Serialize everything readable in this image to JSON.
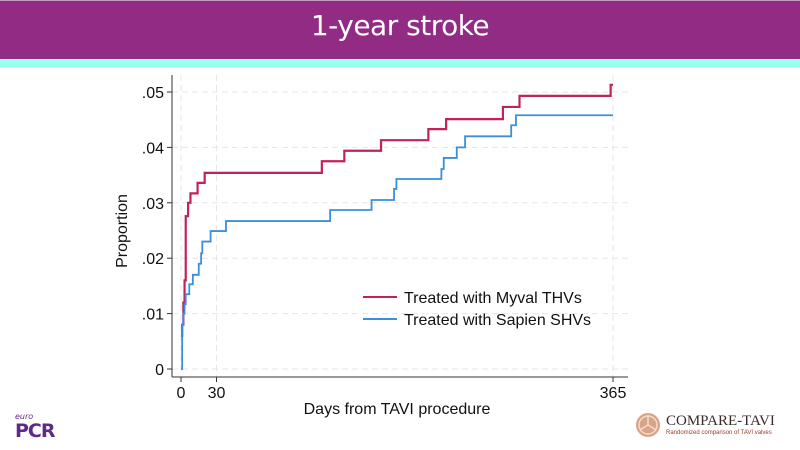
{
  "slide": {
    "title": "1-year stroke",
    "colors": {
      "header": "#922B83",
      "accent": "#99FFEE"
    }
  },
  "logos": {
    "euro_small": "euro",
    "euro_big": "PCR",
    "compare_name": "COMPARE-TAVI",
    "compare_sub": "Randomized comparison of TAVI valves"
  },
  "chart_data": {
    "type": "line",
    "subtype": "step",
    "title": "",
    "xlabel": "Days from TAVI procedure",
    "ylabel": "Proportion",
    "xlim": [
      0,
      365
    ],
    "ylim": [
      0,
      0.05
    ],
    "xticks": [
      0,
      30,
      365
    ],
    "xtick_labels": [
      "0",
      "30",
      "365"
    ],
    "yticks": [
      0,
      0.01,
      0.02,
      0.03,
      0.04,
      0.05
    ],
    "ytick_labels": [
      "0",
      ".01",
      ".02",
      ".03",
      ".04",
      ".05"
    ],
    "grid": true,
    "legend_position": "bottom-right",
    "series": [
      {
        "name": "Treated with Myval THVs",
        "color": "#C0225C",
        "x": [
          0,
          1,
          2,
          3,
          4,
          4,
          6,
          8,
          14,
          20,
          119,
          138,
          169,
          209,
          224,
          272,
          286,
          363,
          365
        ],
        "y": [
          0.006,
          0.008,
          0.012,
          0.016,
          0.02,
          0.0276,
          0.03,
          0.0317,
          0.0336,
          0.0354,
          0.0375,
          0.0394,
          0.0413,
          0.0433,
          0.0451,
          0.0473,
          0.0493,
          0.0513,
          0.0513
        ]
      },
      {
        "name": "Treated with Sapien SHVs",
        "color": "#3A8FDC",
        "x": [
          0,
          1,
          2,
          3,
          4,
          7,
          10,
          15,
          17,
          18,
          25,
          38,
          126,
          161,
          180,
          182,
          220,
          222,
          233,
          240,
          279,
          283,
          365
        ],
        "y": [
          0,
          0.008,
          0.01,
          0.0117,
          0.0135,
          0.0153,
          0.017,
          0.019,
          0.0209,
          0.023,
          0.0249,
          0.0267,
          0.0287,
          0.0305,
          0.0325,
          0.0343,
          0.0361,
          0.0381,
          0.04,
          0.042,
          0.044,
          0.0458,
          0.0458
        ]
      }
    ]
  }
}
